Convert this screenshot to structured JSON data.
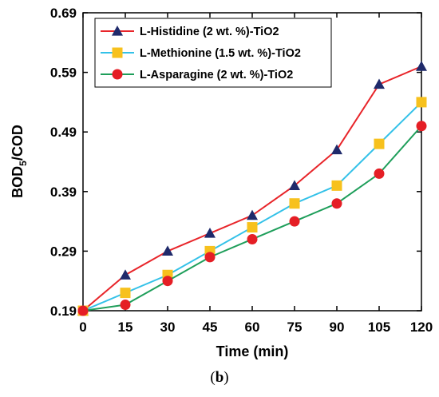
{
  "caption": {
    "open": "(",
    "letter": "b",
    "close": ")"
  },
  "chart_data": {
    "type": "line",
    "xlabel": "Time (min)",
    "ylabel_main": "BOD",
    "ylabel_sub": "5",
    "ylabel_tail": "/COD",
    "x": [
      0,
      15,
      30,
      45,
      60,
      75,
      90,
      105,
      120
    ],
    "x_ticks": [
      "0",
      "15",
      "30",
      "45",
      "60",
      "75",
      "90",
      "105",
      "120"
    ],
    "y_ticks": [
      "0.19",
      "0.29",
      "0.39",
      "0.49",
      "0.59",
      "0.69"
    ],
    "xlim": [
      0,
      120
    ],
    "ylim": [
      0.19,
      0.69
    ],
    "grid": false,
    "legend_position": "top-left",
    "series": [
      {
        "name": "L-Histidine (2 wt. %)-TiO2",
        "line_color": "#e8252a",
        "marker": "triangle",
        "marker_color": "#1f2a6b",
        "values": [
          0.19,
          0.25,
          0.29,
          0.32,
          0.35,
          0.4,
          0.46,
          0.57,
          0.6
        ]
      },
      {
        "name": "L-Methionine (1.5 wt. %)-TiO2",
        "line_color": "#33c1e8",
        "marker": "square",
        "marker_color": "#f7c11d",
        "values": [
          0.19,
          0.22,
          0.25,
          0.29,
          0.33,
          0.37,
          0.4,
          0.47,
          0.54
        ]
      },
      {
        "name": "L-Asparagine (2 wt. %)-TiO2",
        "line_color": "#1e9e5a",
        "marker": "circle",
        "marker_color": "#e51e25",
        "values": [
          0.19,
          0.2,
          0.24,
          0.28,
          0.31,
          0.34,
          0.37,
          0.42,
          0.5
        ]
      }
    ]
  }
}
